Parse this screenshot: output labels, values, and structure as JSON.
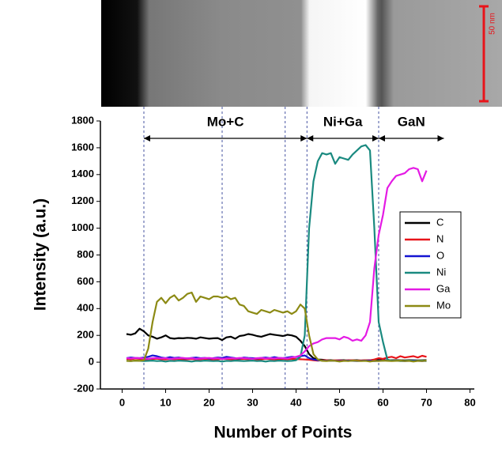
{
  "chart_data": {
    "type": "line",
    "image_scale_label": "50 nm",
    "xlabel": "Number of Points",
    "ylabel": "Intensity (a.u.)",
    "xlim": [
      -5,
      81
    ],
    "ylim": [
      -200,
      1800
    ],
    "xticks": [
      0,
      10,
      20,
      30,
      40,
      50,
      60,
      70,
      80
    ],
    "yticks": [
      -200,
      0,
      200,
      400,
      600,
      800,
      1000,
      1200,
      1400,
      1600,
      1800
    ],
    "legend": "right",
    "dividers": [
      5,
      23,
      37.5,
      42.5,
      59
    ],
    "regions": [
      {
        "label": "Mo+C",
        "from": 5,
        "to": 42.5
      },
      {
        "label": "Ni+Ga",
        "from": 42.5,
        "to": 59
      },
      {
        "label": "GaN",
        "from": 59,
        "to": 74
      }
    ],
    "x": [
      1,
      2,
      3,
      4,
      5,
      6,
      7,
      8,
      9,
      10,
      11,
      12,
      13,
      14,
      15,
      16,
      17,
      18,
      19,
      20,
      21,
      22,
      23,
      24,
      25,
      26,
      27,
      28,
      29,
      30,
      31,
      32,
      33,
      34,
      35,
      36,
      37,
      38,
      39,
      40,
      41,
      42,
      43,
      44,
      45,
      46,
      47,
      48,
      49,
      50,
      51,
      52,
      53,
      54,
      55,
      56,
      57,
      58,
      59,
      60,
      61,
      62,
      63,
      64,
      65,
      66,
      67,
      68,
      69,
      70
    ],
    "series": [
      {
        "name": "C",
        "color": "#000000",
        "values": [
          210,
          205,
          215,
          250,
          230,
          200,
          190,
          175,
          185,
          200,
          180,
          175,
          180,
          178,
          182,
          180,
          175,
          185,
          180,
          175,
          178,
          180,
          165,
          185,
          190,
          175,
          195,
          200,
          210,
          205,
          195,
          190,
          200,
          210,
          205,
          200,
          195,
          205,
          200,
          190,
          160,
          120,
          60,
          30,
          20,
          18,
          15,
          15,
          12,
          14,
          15,
          12,
          14,
          15,
          12,
          14,
          15,
          15,
          16,
          15,
          14,
          14,
          15,
          14,
          13,
          15,
          14,
          13,
          14,
          15
        ]
      },
      {
        "name": "N",
        "color": "#e8141a",
        "values": [
          25,
          22,
          28,
          25,
          20,
          22,
          24,
          26,
          22,
          20,
          24,
          22,
          25,
          20,
          22,
          24,
          20,
          22,
          25,
          23,
          20,
          22,
          25,
          24,
          22,
          20,
          23,
          25,
          22,
          24,
          20,
          22,
          25,
          23,
          22,
          20,
          24,
          22,
          25,
          23,
          22,
          20,
          18,
          15,
          12,
          14,
          15,
          12,
          14,
          13,
          12,
          15,
          14,
          12,
          13,
          15,
          14,
          20,
          30,
          25,
          35,
          40,
          30,
          45,
          35,
          40,
          45,
          35,
          48,
          40
        ]
      },
      {
        "name": "O",
        "color": "#1414d2",
        "values": [
          30,
          35,
          32,
          30,
          35,
          40,
          50,
          45,
          35,
          30,
          38,
          32,
          35,
          30,
          28,
          32,
          35,
          30,
          32,
          28,
          30,
          35,
          32,
          40,
          35,
          30,
          28,
          35,
          32,
          30,
          28,
          32,
          35,
          30,
          38,
          32,
          30,
          35,
          40,
          38,
          45,
          50,
          30,
          20,
          15,
          12,
          10,
          12,
          10,
          8,
          10,
          12,
          10,
          8,
          10,
          12,
          10,
          8,
          10,
          12,
          15,
          10,
          12,
          10,
          8,
          10,
          12,
          10,
          8,
          10
        ]
      },
      {
        "name": "Ni",
        "color": "#1a8a80",
        "values": [
          10,
          8,
          12,
          10,
          8,
          10,
          12,
          8,
          10,
          5,
          10,
          8,
          12,
          10,
          8,
          5,
          10,
          8,
          12,
          10,
          8,
          10,
          5,
          10,
          8,
          12,
          10,
          8,
          10,
          12,
          8,
          10,
          5,
          10,
          8,
          12,
          10,
          8,
          10,
          15,
          40,
          200,
          1000,
          1350,
          1500,
          1560,
          1550,
          1560,
          1480,
          1530,
          1520,
          1510,
          1550,
          1580,
          1610,
          1620,
          1580,
          1000,
          300,
          150,
          20,
          10,
          12,
          8,
          10,
          12,
          8,
          10,
          12,
          8
        ]
      },
      {
        "name": "Ga",
        "color": "#e41ae4",
        "values": [
          30,
          28,
          32,
          30,
          28,
          25,
          30,
          32,
          28,
          30,
          25,
          28,
          30,
          32,
          28,
          30,
          25,
          28,
          30,
          32,
          28,
          30,
          25,
          28,
          30,
          28,
          32,
          30,
          28,
          25,
          30,
          32,
          28,
          30,
          28,
          32,
          30,
          28,
          35,
          40,
          50,
          80,
          120,
          140,
          150,
          170,
          180,
          180,
          180,
          170,
          190,
          180,
          160,
          170,
          160,
          200,
          300,
          700,
          950,
          1100,
          1300,
          1350,
          1390,
          1400,
          1410,
          1440,
          1450,
          1440,
          1350,
          1430
        ]
      },
      {
        "name": "Mo",
        "color": "#8c8a14",
        "values": [
          10,
          8,
          12,
          10,
          15,
          100,
          300,
          450,
          480,
          440,
          480,
          500,
          460,
          480,
          510,
          520,
          450,
          490,
          480,
          470,
          490,
          490,
          480,
          490,
          470,
          480,
          430,
          420,
          380,
          370,
          360,
          390,
          380,
          370,
          390,
          380,
          370,
          380,
          360,
          380,
          430,
          400,
          200,
          60,
          20,
          10,
          8,
          12,
          10,
          5,
          10,
          8,
          12,
          10,
          8,
          10,
          5,
          10,
          8,
          12,
          10,
          8,
          10,
          12,
          8,
          10,
          5,
          10,
          8,
          12
        ]
      }
    ]
  }
}
